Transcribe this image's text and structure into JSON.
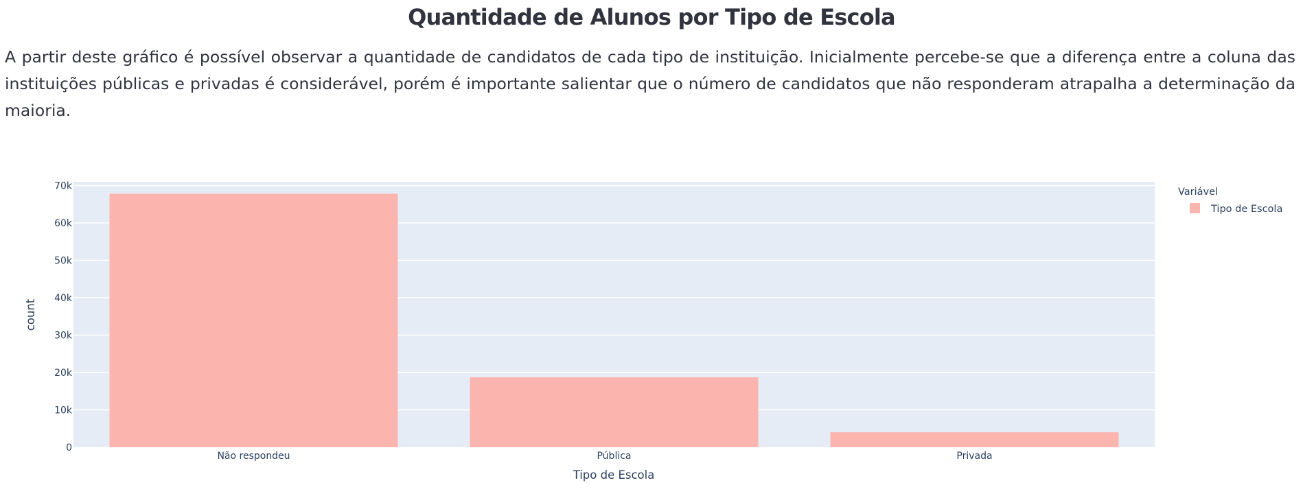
{
  "page": {
    "title": "Quantidade de Alunos por Tipo de Escola",
    "description": "A partir deste gráfico é possível observar a quantidade de candidatos de cada tipo de instituição. Inicialmente percebe-se que a diferença entre a coluna das instituições públicas e privadas é considerável, porém é importante salientar que o número de candidatos que não responderam atrapalha a determinação da maioria."
  },
  "chart_data": {
    "type": "bar",
    "title": "",
    "xlabel": "Tipo de Escola",
    "ylabel": "count",
    "categories": [
      "Não respondeu",
      "Pública",
      "Privada"
    ],
    "series": [
      {
        "name": "Tipo de Escola",
        "values": [
          67800,
          18700,
          4000
        ]
      }
    ],
    "ylim": [
      0,
      71000
    ],
    "yticks": [
      0,
      10000,
      20000,
      30000,
      40000,
      50000,
      60000,
      70000
    ],
    "ytick_labels": [
      "0",
      "10k",
      "20k",
      "30k",
      "40k",
      "50k",
      "60k",
      "70k"
    ],
    "legend_title": "Variável",
    "legend_position": "top-right",
    "grid": true,
    "colors": {
      "bar": "#fbb4ae",
      "plot_background": "#e5ecf6",
      "gridline": "#ffffff",
      "text": "#2a3f5f"
    }
  }
}
